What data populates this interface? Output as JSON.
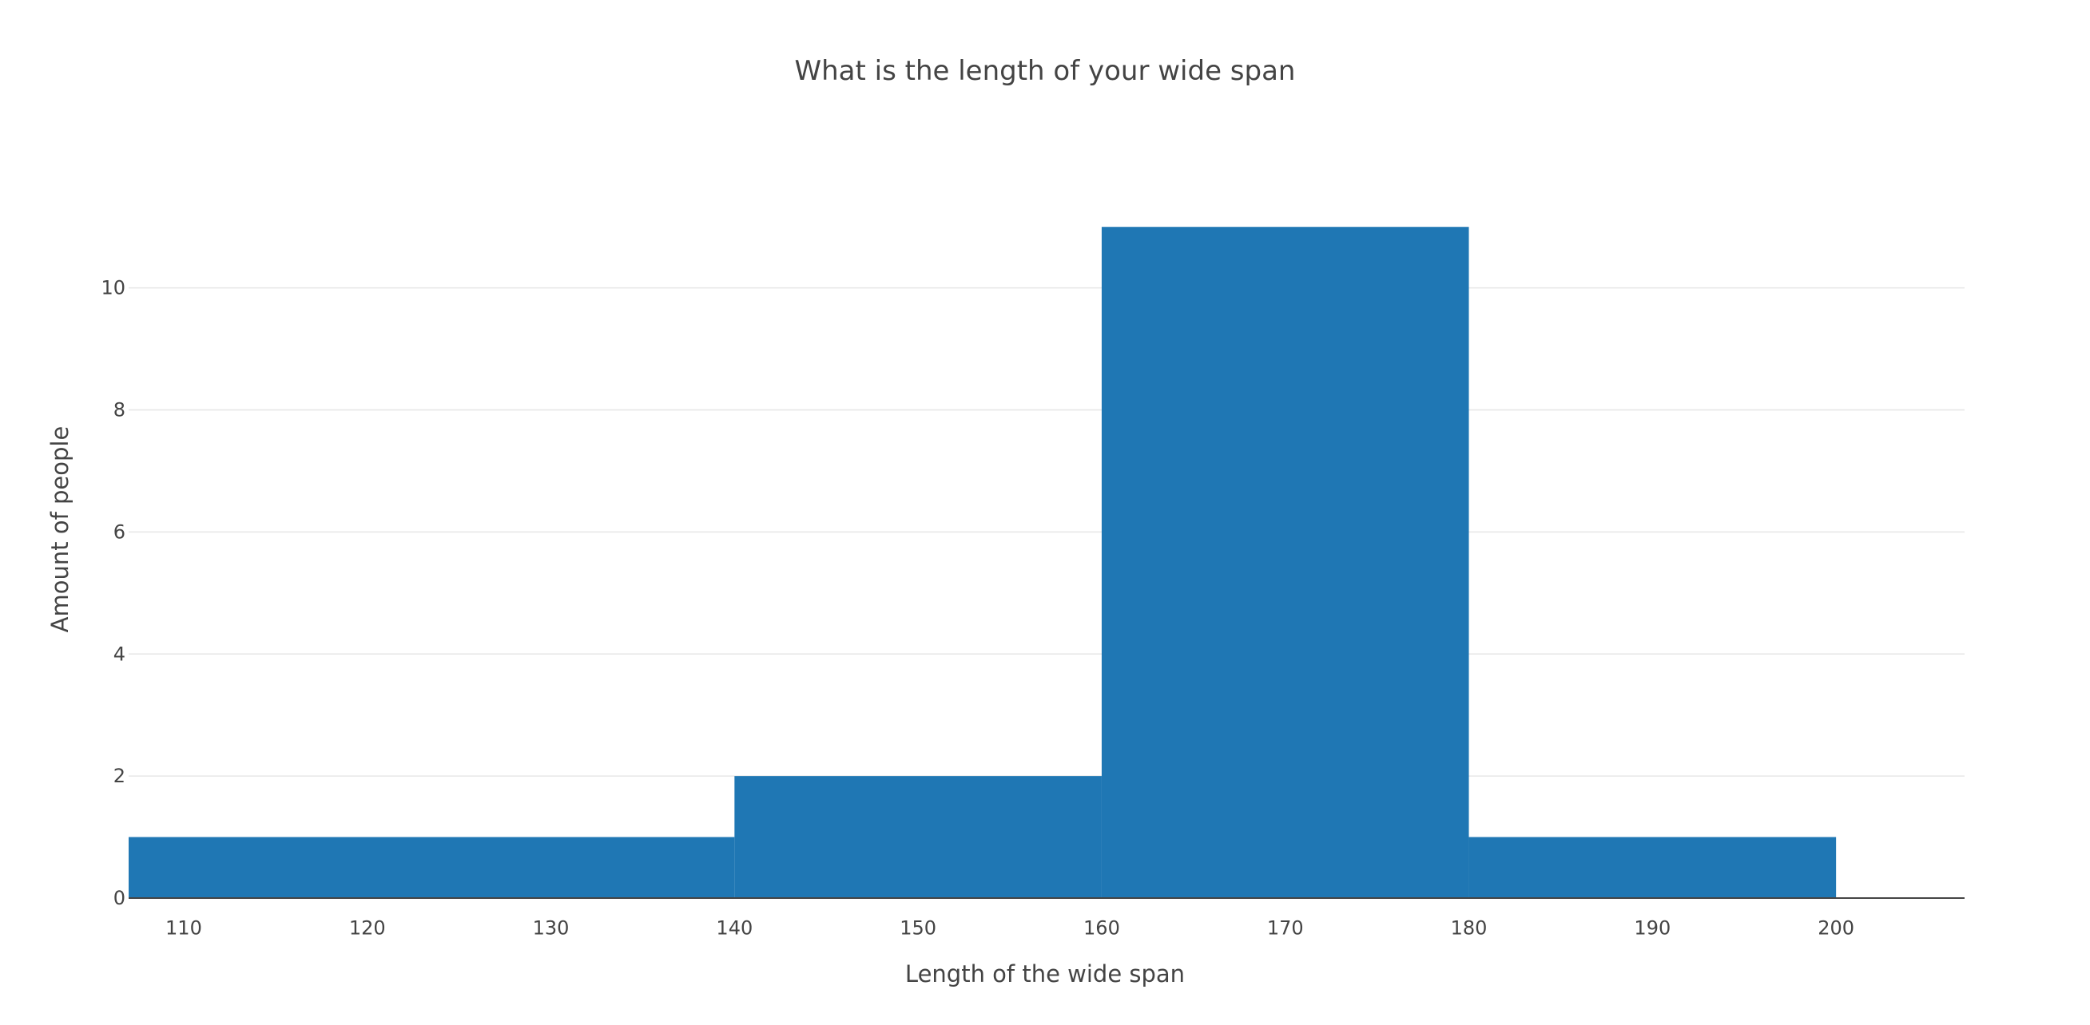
{
  "chart_data": {
    "type": "bar",
    "title": "What is the length of your wide span",
    "xlabel": "Length of the wide span",
    "ylabel": "Amount of people",
    "bin_edges": [
      107,
      140,
      160,
      180,
      200
    ],
    "values": [
      1,
      2,
      11,
      1
    ],
    "xlim": [
      107,
      207
    ],
    "ylim": [
      0,
      11.5
    ],
    "x_ticks": [
      "110",
      "120",
      "130",
      "140",
      "150",
      "160",
      "170",
      "180",
      "190",
      "200"
    ],
    "x_tick_values": [
      110,
      120,
      130,
      140,
      150,
      160,
      170,
      180,
      190,
      200
    ],
    "y_ticks": [
      "0",
      "2",
      "4",
      "6",
      "8",
      "10"
    ],
    "y_tick_values": [
      0,
      2,
      4,
      6,
      8,
      10
    ],
    "grid": true,
    "legend": "none",
    "bar_color": "#1f77b4",
    "grid_color": "#e6e6e6",
    "axis_color": "#444444"
  }
}
